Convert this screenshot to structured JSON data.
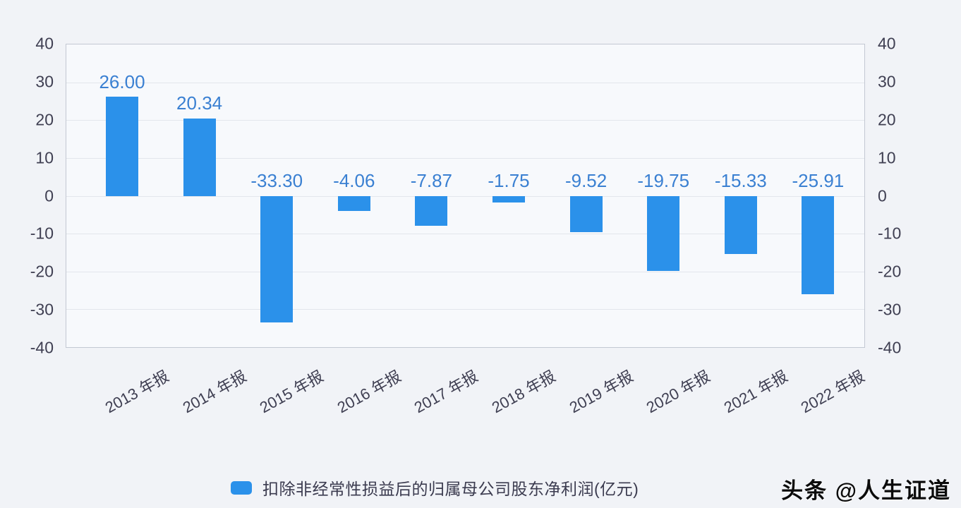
{
  "chart_data": {
    "type": "bar",
    "title": "",
    "categories": [
      "2013 年报",
      "2014 年报",
      "2015 年报",
      "2016 年报",
      "2017 年报",
      "2018 年报",
      "2019 年报",
      "2020 年报",
      "2021 年报",
      "2022 年报"
    ],
    "series": [
      {
        "name": "扣除非经常性损益后的归属母公司股东净利润(亿元)",
        "values": [
          26.0,
          20.34,
          -33.3,
          -4.06,
          -7.87,
          -1.75,
          -9.52,
          -19.75,
          -15.33,
          -25.91
        ]
      }
    ],
    "value_labels": [
      "26.00",
      "20.34",
      "-33.30",
      "-4.06",
      "-7.87",
      "-1.75",
      "-9.52",
      "-19.75",
      "-15.33",
      "-25.91"
    ],
    "xlabel": "",
    "ylabel": "",
    "ylim": [
      -40,
      40
    ],
    "yticks": [
      40,
      30,
      20,
      10,
      0,
      -10,
      -20,
      -30,
      -40
    ],
    "dual_y_axis": true,
    "grid": true,
    "legend_position": "bottom",
    "colors": {
      "bar": "#2b91ea",
      "value_label": "#3a80d2",
      "axis_text": "#3f3f52",
      "gridline": "#e3e6ec"
    }
  },
  "watermark": {
    "text": "头条 @人生证道"
  }
}
